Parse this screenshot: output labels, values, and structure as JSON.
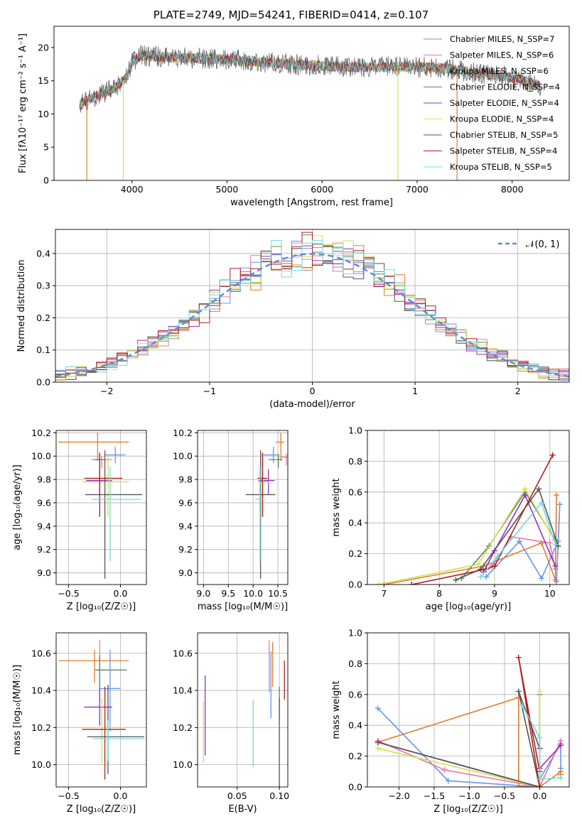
{
  "page_title": "PLATE=2749, MJD=54241, FIBERID=0414, z=0.107",
  "colors": {
    "chabrier_miles": "#6495ed",
    "salpeter_miles": "#e977a7",
    "kroupa_miles": "#e27c2f",
    "chabrier_elodie": "#5a8a5a",
    "salpeter_elodie": "#9b30b4",
    "kroupa_elodie": "#d4e050",
    "chabrier_stelib": "#555555",
    "salpeter_stelib": "#b01e1e",
    "kroupa_stelib": "#6fdede"
  },
  "chart_data": [
    {
      "id": "spectrum",
      "type": "line",
      "title": "",
      "xlabel": "wavelength [Angstrom, rest frame]",
      "ylabel": "Flux [fλ10⁻¹⁷ erg cm⁻² s⁻¹ A⁻¹]",
      "xlim": [
        3180,
        8600
      ],
      "ylim": [
        0,
        23.2
      ],
      "xticks": [
        4000,
        5000,
        6000,
        7000,
        8000
      ],
      "yticks": [
        0,
        5,
        10,
        15,
        20
      ],
      "grid": false,
      "legend_position": "right",
      "legend": [
        "Chabrier MILES, N_SSP=7",
        "Salpeter MILES, N_SSP=6",
        "Kroupa MILES, N_SSP=6",
        "Chabrier ELODIE, N_SSP=4",
        "Salpeter ELODIE, N_SSP=4",
        "Kroupa ELODIE, N_SSP=4",
        "Chabrier STELIB, N_SSP=5",
        "Salpeter STELIB, N_SSP=4",
        "Kroupa STELIB, N_SSP=5"
      ],
      "continuum": {
        "x": [
          3450,
          3600,
          3800,
          3950,
          4000,
          4100,
          4300,
          4600,
          4900,
          5200,
          5500,
          5800,
          6100,
          6400,
          6700,
          7000,
          7300,
          7600,
          7900,
          8200,
          8300
        ],
        "y": [
          11.5,
          12.5,
          13.8,
          15.5,
          18.0,
          18.8,
          18.6,
          18.4,
          18.3,
          18.0,
          17.7,
          17.4,
          17.2,
          17.0,
          17.1,
          17.1,
          16.9,
          16.2,
          15.8,
          14.8,
          14.2
        ]
      },
      "spikes": [
        3525,
        3909,
        6798,
        7420
      ]
    },
    {
      "id": "residuals",
      "type": "step",
      "title": "",
      "xlabel": "(data-model)/error",
      "ylabel": "Normed distribution",
      "xlim": [
        -2.5,
        2.5
      ],
      "ylim": [
        0,
        0.475
      ],
      "xticks": [
        -2,
        -1,
        0,
        1,
        2
      ],
      "yticks": [
        0.0,
        0.1,
        0.2,
        0.3,
        0.4
      ],
      "grid": true,
      "legend_position": "top-right",
      "legend": [
        "N(0,1)"
      ],
      "bin_width": 0.1
    },
    {
      "id": "age-vs-z",
      "type": "errorbar",
      "xlabel": "Z [log₁₀(Z/Z☉)]",
      "ylabel": "age  [log₁₀(age/yr)]",
      "xlim": [
        -0.62,
        0.25
      ],
      "ylim": [
        8.9,
        10.22
      ],
      "xticks": [
        -0.5,
        0.0
      ],
      "yticks": [
        9.0,
        9.2,
        9.4,
        9.6,
        9.8,
        10.0,
        10.2
      ],
      "points": [
        {
          "x": -0.05,
          "y": 10.01,
          "xerr": [
            0.1,
            0.1
          ],
          "yerr": [
            0.07,
            0.07
          ]
        },
        {
          "x": -0.18,
          "y": 9.97,
          "xerr": [
            0.1,
            0.1
          ],
          "yerr": [
            0.07,
            0.03
          ]
        },
        {
          "x": -0.22,
          "y": 10.12,
          "xerr": [
            0.38,
            0.3
          ],
          "yerr": [
            0.16,
            0.08
          ]
        },
        {
          "x": -0.2,
          "y": 9.97,
          "xerr": [
            0.05,
            0.05
          ],
          "yerr": [
            0.07,
            0.05
          ]
        },
        {
          "x": -0.2,
          "y": 9.79,
          "xerr": [
            0.13,
            0.12
          ],
          "yerr": [
            0.12,
            0.1
          ]
        },
        {
          "x": -0.12,
          "y": 9.78,
          "xerr": [
            0.25,
            0.2
          ],
          "yerr": [
            0.3,
            0.22
          ]
        },
        {
          "x": -0.15,
          "y": 9.67,
          "xerr": [
            0.19,
            0.36
          ],
          "yerr": [
            0.72,
            0.38
          ]
        },
        {
          "x": -0.2,
          "y": 9.81,
          "xerr": [
            0.15,
            0.22
          ],
          "yerr": [
            0.33,
            0.22
          ]
        },
        {
          "x": -0.1,
          "y": 9.63,
          "xerr": [
            0.18,
            0.3
          ],
          "yerr": [
            0.53,
            0.28
          ]
        }
      ]
    },
    {
      "id": "age-vs-mass",
      "type": "errorbar",
      "xlabel": "mass [log₁₀(M/M☉)]",
      "ylabel": "",
      "xlim": [
        8.88,
        10.7
      ],
      "ylim": [
        8.9,
        10.22
      ],
      "xticks": [
        9.0,
        9.5,
        10.0,
        10.5
      ],
      "yticks": [
        9.0,
        9.2,
        9.4,
        9.6,
        9.8,
        10.0,
        10.2
      ],
      "points": [
        {
          "x": 10.41,
          "y": 10.01,
          "xerr": [
            0.23,
            0.1
          ],
          "yerr": [
            0.07,
            0.07
          ]
        },
        {
          "x": 10.67,
          "y": 9.99,
          "xerr": [
            0.12,
            0.1
          ],
          "yerr": [
            0.07,
            0.03
          ]
        },
        {
          "x": 10.56,
          "y": 10.12,
          "xerr": [
            0.1,
            0.07
          ],
          "yerr": [
            0.16,
            0.08
          ]
        },
        {
          "x": 10.51,
          "y": 9.97,
          "xerr": [
            0.2,
            0.08
          ],
          "yerr": [
            0.07,
            0.05
          ]
        },
        {
          "x": 10.31,
          "y": 9.79,
          "xerr": [
            0.2,
            0.12
          ],
          "yerr": [
            0.12,
            0.1
          ]
        },
        {
          "x": 10.2,
          "y": 9.78,
          "xerr": [
            0.11,
            0.12
          ],
          "yerr": [
            0.3,
            0.22
          ]
        },
        {
          "x": 10.15,
          "y": 9.67,
          "xerr": [
            0.3,
            0.3
          ],
          "yerr": [
            0.72,
            0.38
          ]
        },
        {
          "x": 10.19,
          "y": 9.81,
          "xerr": [
            0.1,
            0.1
          ],
          "yerr": [
            0.33,
            0.22
          ]
        },
        {
          "x": 10.14,
          "y": 9.63,
          "xerr": [
            0.1,
            0.1
          ],
          "yerr": [
            0.53,
            0.28
          ]
        }
      ]
    },
    {
      "id": "weight-vs-age",
      "type": "line",
      "xlabel": "age  [log₁₀(age/yr)]",
      "ylabel": "mass weight",
      "xlim": [
        6.7,
        10.35
      ],
      "ylim": [
        0,
        1.0
      ],
      "xticks": [
        7,
        8,
        9,
        10
      ],
      "yticks": [
        0.0,
        0.2,
        0.4,
        0.6,
        0.8,
        1.0
      ],
      "series": [
        {
          "x": [
            8.85,
            9.45,
            9.85,
            10.15,
            10.18,
            10.12
          ],
          "y": [
            0.05,
            0.28,
            0.04,
            0.28,
            0.52,
            0.02
          ]
        },
        {
          "x": [
            8.95,
            9.3,
            10.0,
            10.1
          ],
          "y": [
            0.12,
            0.31,
            0.27,
            0.1
          ]
        },
        {
          "x": [
            7.0,
            8.8,
            9.85,
            10.1,
            10.12
          ],
          "y": [
            0.0,
            0.12,
            0.27,
            0.03,
            0.58
          ]
        },
        {
          "x": [
            8.4,
            8.9,
            9.55,
            10.1
          ],
          "y": [
            0.04,
            0.25,
            0.6,
            0.29
          ]
        },
        {
          "x": [
            8.8,
            9.0,
            9.55,
            10.1
          ],
          "y": [
            0.08,
            0.22,
            0.58,
            0.12
          ]
        },
        {
          "x": [
            6.9,
            8.7,
            9.55,
            10.15
          ],
          "y": [
            0.0,
            0.13,
            0.62,
            0.25
          ]
        },
        {
          "x": [
            8.3,
            8.75,
            9.8,
            10.15
          ],
          "y": [
            0.03,
            0.1,
            0.62,
            0.25
          ]
        },
        {
          "x": [
            7.5,
            8.85,
            9.0,
            10.05
          ],
          "y": [
            0.0,
            0.1,
            0.12,
            0.84
          ]
        },
        {
          "x": [
            8.75,
            9.05,
            9.85,
            10.1
          ],
          "y": [
            0.05,
            0.18,
            0.53,
            0.26
          ]
        }
      ]
    },
    {
      "id": "mass-vs-z",
      "type": "errorbar",
      "xlabel": "Z [log₁₀(Z/Z☉)]",
      "ylabel": "mass [log₁₀(M/M☉)]",
      "xlim": [
        -0.62,
        0.25
      ],
      "ylim": [
        9.88,
        10.71
      ],
      "xticks": [
        -0.5,
        0.0
      ],
      "yticks": [
        10.0,
        10.2,
        10.4,
        10.6
      ],
      "points": [
        {
          "x": -0.1,
          "y": 10.41,
          "xerr": [
            0.1,
            0.1
          ],
          "yerr": [
            0.23,
            0.21
          ]
        },
        {
          "x": -0.2,
          "y": 10.51,
          "xerr": [
            0.05,
            0.05
          ],
          "yerr": [
            0.16,
            0.16
          ]
        },
        {
          "x": -0.25,
          "y": 10.56,
          "xerr": [
            0.35,
            0.33
          ],
          "yerr": [
            0.12,
            0.06
          ]
        },
        {
          "x": -0.2,
          "y": 10.51,
          "xerr": [
            0.04,
            0.26
          ],
          "yerr": [
            0.1,
            0.08
          ]
        },
        {
          "x": -0.2,
          "y": 10.31,
          "xerr": [
            0.15,
            0.12
          ],
          "yerr": [
            0.1,
            0.1
          ]
        },
        {
          "x": -0.18,
          "y": 10.2,
          "xerr": [
            0.18,
            0.2
          ],
          "yerr": [
            0.2,
            0.16
          ]
        },
        {
          "x": -0.12,
          "y": 10.15,
          "xerr": [
            0.2,
            0.35
          ],
          "yerr": [
            0.2,
            0.28
          ]
        },
        {
          "x": -0.15,
          "y": 10.19,
          "xerr": [
            0.22,
            0.2
          ],
          "yerr": [
            0.27,
            0.23
          ]
        },
        {
          "x": -0.12,
          "y": 10.14,
          "xerr": [
            0.15,
            0.35
          ],
          "yerr": [
            0.12,
            0.1
          ]
        }
      ]
    },
    {
      "id": "mass-vs-ebv",
      "type": "errorbar",
      "xlabel": "E(B-V)",
      "ylabel": "",
      "xlim": [
        0.003,
        0.11
      ],
      "ylim": [
        9.88,
        10.71
      ],
      "xticks": [
        0.05,
        0.1
      ],
      "yticks": [
        10.0,
        10.2,
        10.4,
        10.6
      ],
      "points": [
        {
          "x": 0.09,
          "y": 10.41,
          "xerr": [
            0,
            0
          ],
          "yerr": [
            0.16,
            0.2
          ]
        },
        {
          "x": 0.088,
          "y": 10.51,
          "xerr": [
            0,
            0
          ],
          "yerr": [
            0.12,
            0.16
          ]
        },
        {
          "x": 0.092,
          "y": 10.5,
          "xerr": [
            0,
            0
          ],
          "yerr": [
            0.08,
            0.16
          ]
        },
        {
          "x": 0.1,
          "y": 10.3,
          "xerr": [
            0,
            0
          ],
          "yerr": [
            0.06,
            0.12
          ]
        },
        {
          "x": 0.012,
          "y": 10.27,
          "xerr": [
            0,
            0
          ],
          "yerr": [
            0.22,
            0.21
          ]
        },
        {
          "x": 0.01,
          "y": 10.18,
          "xerr": [
            0,
            0
          ],
          "yerr": [
            0.17,
            0.16
          ]
        },
        {
          "x": 0.1,
          "y": 10.06,
          "xerr": [
            0,
            0
          ],
          "yerr": [
            0.18,
            0.3
          ]
        },
        {
          "x": 0.106,
          "y": 10.46,
          "xerr": [
            0,
            0
          ],
          "yerr": [
            0.11,
            0.1
          ]
        },
        {
          "x": 0.069,
          "y": 10.17,
          "xerr": [
            0,
            0
          ],
          "yerr": [
            0.18,
            0.18
          ]
        }
      ]
    },
    {
      "id": "weight-vs-z",
      "type": "line",
      "xlabel": "Z [log₁₀(Z/Z☉)]",
      "ylabel": "mass weight",
      "xlim": [
        -2.45,
        0.42
      ],
      "ylim": [
        0,
        1.0
      ],
      "xticks": [
        -2.0,
        -1.5,
        -1.0,
        -0.5,
        0.0
      ],
      "yticks": [
        0.0,
        0.2,
        0.4,
        0.6,
        0.8,
        1.0
      ],
      "series": [
        {
          "x": [
            -2.3,
            -1.3,
            0.0,
            0.0,
            0.3,
            0.3
          ],
          "y": [
            0.51,
            0.04,
            0.0,
            0.05,
            0.28,
            0.12
          ]
        },
        {
          "x": [
            -2.3,
            -1.35,
            0.0,
            0.3,
            0.3
          ],
          "y": [
            0.3,
            0.11,
            0.0,
            0.3,
            0.27
          ]
        },
        {
          "x": [
            -2.3,
            -0.3,
            -0.3,
            0.0,
            0.3,
            0.3
          ],
          "y": [
            0.29,
            0.58,
            0.0,
            0.0,
            0.1,
            0.08
          ]
        },
        {
          "x": [
            -2.3,
            0.0,
            0.0,
            0.0
          ],
          "y": [
            0.29,
            0.0,
            0.6,
            0.05
          ]
        },
        {
          "x": [
            -2.3,
            0.0,
            0.0,
            0.3
          ],
          "y": [
            0.29,
            0.0,
            0.12,
            0.27
          ]
        },
        {
          "x": [
            -2.3,
            0.0,
            0.0,
            0.0
          ],
          "y": [
            0.25,
            0.0,
            0.62,
            0.06
          ]
        },
        {
          "x": [
            -2.3,
            0.0,
            -0.3,
            0.0
          ],
          "y": [
            0.29,
            0.0,
            0.62,
            0.25
          ]
        },
        {
          "x": [
            -0.0,
            -0.3,
            0.0
          ],
          "y": [
            0.0,
            0.84,
            0.1
          ]
        },
        {
          "x": [
            -0.25,
            0.0,
            0.0,
            0.3
          ],
          "y": [
            0.53,
            0.32,
            0.05,
            0.06
          ]
        }
      ]
    }
  ]
}
